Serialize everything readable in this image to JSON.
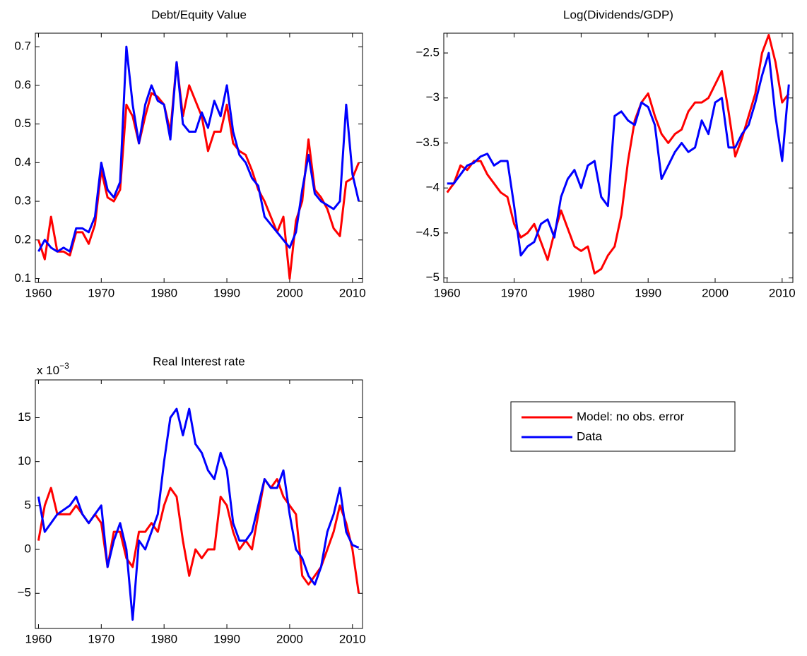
{
  "chart_data": [
    {
      "type": "line",
      "title": "Debt/Equity Value",
      "x": [
        1960,
        1961,
        1962,
        1963,
        1964,
        1965,
        1966,
        1967,
        1968,
        1969,
        1970,
        1971,
        1972,
        1973,
        1974,
        1975,
        1976,
        1977,
        1978,
        1979,
        1980,
        1981,
        1982,
        1983,
        1984,
        1985,
        1986,
        1987,
        1988,
        1989,
        1990,
        1991,
        1992,
        1993,
        1994,
        1995,
        1996,
        1997,
        1998,
        1999,
        2000,
        2001,
        2002,
        2003,
        2004,
        2005,
        2006,
        2007,
        2008,
        2009,
        2010,
        2011
      ],
      "series": [
        {
          "color": "#ff0000",
          "values": [
            0.2,
            0.15,
            0.26,
            0.17,
            0.17,
            0.16,
            0.22,
            0.22,
            0.19,
            0.24,
            0.38,
            0.31,
            0.3,
            0.33,
            0.55,
            0.52,
            0.45,
            0.52,
            0.58,
            0.57,
            0.55,
            0.48,
            0.66,
            0.52,
            0.6,
            0.56,
            0.52,
            0.43,
            0.48,
            0.48,
            0.55,
            0.45,
            0.43,
            0.42,
            0.38,
            0.33,
            0.3,
            0.26,
            0.22,
            0.26,
            0.1,
            0.25,
            0.3,
            0.46,
            0.33,
            0.31,
            0.28,
            0.23,
            0.21,
            0.35,
            0.36,
            0.4
          ]
        },
        {
          "color": "#0000ff",
          "values": [
            0.17,
            0.2,
            0.18,
            0.17,
            0.18,
            0.17,
            0.23,
            0.23,
            0.22,
            0.26,
            0.4,
            0.33,
            0.31,
            0.35,
            0.7,
            0.55,
            0.45,
            0.55,
            0.6,
            0.56,
            0.55,
            0.46,
            0.66,
            0.5,
            0.48,
            0.48,
            0.53,
            0.49,
            0.56,
            0.52,
            0.6,
            0.48,
            0.42,
            0.4,
            0.36,
            0.34,
            0.26,
            0.24,
            0.22,
            0.2,
            0.18,
            0.22,
            0.33,
            0.42,
            0.32,
            0.3,
            0.29,
            0.28,
            0.3,
            0.55,
            0.37,
            0.3
          ]
        }
      ],
      "xlim": [
        1959.5,
        2011.6
      ],
      "xticks": [
        1960,
        1970,
        1980,
        1990,
        2000,
        2010
      ],
      "ylim": [
        0.09,
        0.735
      ],
      "yticks": [
        0.1,
        0.2,
        0.3,
        0.4,
        0.5,
        0.6,
        0.7
      ]
    },
    {
      "type": "line",
      "title": "Log(Dividends/GDP)",
      "x": [
        1960,
        1961,
        1962,
        1963,
        1964,
        1965,
        1966,
        1967,
        1968,
        1969,
        1970,
        1971,
        1972,
        1973,
        1974,
        1975,
        1976,
        1977,
        1978,
        1979,
        1980,
        1981,
        1982,
        1983,
        1984,
        1985,
        1986,
        1987,
        1988,
        1989,
        1990,
        1991,
        1992,
        1993,
        1994,
        1995,
        1996,
        1997,
        1998,
        1999,
        2000,
        2001,
        2002,
        2003,
        2004,
        2005,
        2006,
        2007,
        2008,
        2009,
        2010,
        2011
      ],
      "series": [
        {
          "color": "#ff0000",
          "values": [
            -4.05,
            -3.95,
            -3.75,
            -3.8,
            -3.7,
            -3.7,
            -3.85,
            -3.95,
            -4.05,
            -4.1,
            -4.4,
            -4.55,
            -4.5,
            -4.4,
            -4.6,
            -4.8,
            -4.5,
            -4.25,
            -4.45,
            -4.65,
            -4.7,
            -4.65,
            -4.95,
            -4.9,
            -4.75,
            -4.65,
            -4.3,
            -3.7,
            -3.25,
            -3.05,
            -2.95,
            -3.2,
            -3.4,
            -3.5,
            -3.4,
            -3.35,
            -3.15,
            -3.05,
            -3.05,
            -3.0,
            -2.85,
            -2.7,
            -3.15,
            -3.65,
            -3.45,
            -3.2,
            -2.95,
            -2.5,
            -2.3,
            -2.6,
            -3.05,
            -2.95
          ]
        },
        {
          "color": "#0000ff",
          "values": [
            -3.95,
            -3.95,
            -3.85,
            -3.75,
            -3.72,
            -3.65,
            -3.62,
            -3.75,
            -3.7,
            -3.7,
            -4.2,
            -4.75,
            -4.65,
            -4.6,
            -4.4,
            -4.35,
            -4.55,
            -4.1,
            -3.9,
            -3.8,
            -4.0,
            -3.75,
            -3.7,
            -4.1,
            -4.2,
            -3.2,
            -3.15,
            -3.25,
            -3.3,
            -3.05,
            -3.1,
            -3.3,
            -3.9,
            -3.75,
            -3.6,
            -3.5,
            -3.6,
            -3.55,
            -3.25,
            -3.4,
            -3.05,
            -3.0,
            -3.55,
            -3.55,
            -3.4,
            -3.3,
            -3.05,
            -2.75,
            -2.5,
            -3.2,
            -3.7,
            -2.85
          ]
        }
      ],
      "xlim": [
        1959.5,
        2011.6
      ],
      "xticks": [
        1960,
        1970,
        1980,
        1990,
        2000,
        2010
      ],
      "ylim": [
        -5.05,
        -2.28
      ],
      "yticks": [
        {
          "value": -5,
          "label": "−5"
        },
        {
          "value": -4.5,
          "label": "−4.5"
        },
        {
          "value": -4,
          "label": "−4"
        },
        {
          "value": -3.5,
          "label": "−3.5"
        },
        {
          "value": -3,
          "label": "−3"
        },
        {
          "value": -2.5,
          "label": "−2.5"
        }
      ]
    },
    {
      "type": "line",
      "title": "Real Interest rate",
      "multiplier": {
        "base": "x 10",
        "exponent": "−3"
      },
      "x": [
        1960,
        1961,
        1962,
        1963,
        1964,
        1965,
        1966,
        1967,
        1968,
        1969,
        1970,
        1971,
        1972,
        1973,
        1974,
        1975,
        1976,
        1977,
        1978,
        1979,
        1980,
        1981,
        1982,
        1983,
        1984,
        1985,
        1986,
        1987,
        1988,
        1989,
        1990,
        1991,
        1992,
        1993,
        1994,
        1995,
        1996,
        1997,
        1998,
        1999,
        2000,
        2001,
        2002,
        2003,
        2004,
        2005,
        2006,
        2007,
        2008,
        2009,
        2010,
        2011
      ],
      "series": [
        {
          "name": "Model: no obs. error",
          "color": "#ff0000",
          "values": [
            1,
            5,
            7,
            4,
            4,
            4,
            5,
            4,
            3,
            4,
            3,
            -2,
            2,
            2,
            -1,
            -2,
            2,
            2,
            3,
            2,
            5,
            7,
            6,
            1,
            -3,
            0,
            -1,
            0,
            0,
            6,
            5,
            2,
            0,
            1,
            0,
            4,
            8,
            7,
            8,
            6,
            5,
            4,
            -3,
            -4,
            -3,
            -2,
            0,
            2,
            5,
            3,
            0,
            -5
          ]
        },
        {
          "name": "Data",
          "color": "#0000ff",
          "values": [
            6,
            2,
            3,
            4,
            4.5,
            5,
            6,
            4,
            3,
            4,
            5,
            -2,
            1,
            3,
            0,
            -8,
            1,
            0,
            2,
            4,
            10,
            15,
            16,
            13,
            16,
            12,
            11,
            9,
            8,
            11,
            9,
            3,
            1,
            1,
            2,
            5,
            8,
            7,
            7,
            9,
            4,
            0,
            -1,
            -3,
            -4,
            -2,
            2,
            4,
            7,
            2,
            0.5,
            0.2
          ]
        }
      ],
      "xlim": [
        1959.5,
        2011.6
      ],
      "xticks": [
        1960,
        1970,
        1980,
        1990,
        2000,
        2010
      ],
      "ylim": [
        -9,
        19.3
      ],
      "yticks": [
        {
          "value": -5,
          "label": "−5"
        },
        0,
        5,
        10,
        15
      ]
    }
  ]
}
